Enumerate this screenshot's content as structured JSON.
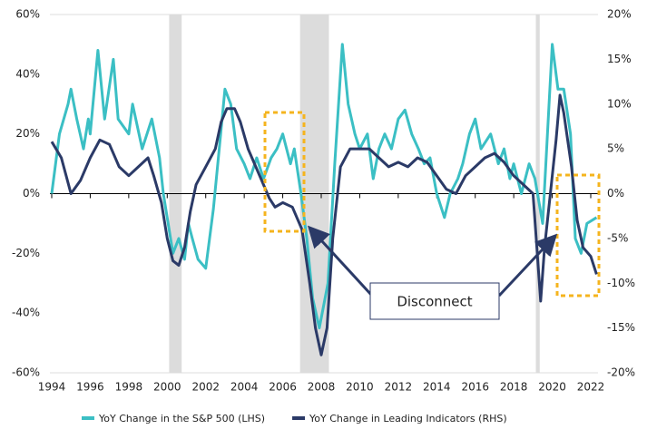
{
  "chart_data": {
    "type": "line",
    "xlim": [
      1994,
      2022
    ],
    "xticks": [
      1994,
      1996,
      1998,
      2000,
      2002,
      2004,
      2006,
      2008,
      2010,
      2012,
      2014,
      2016,
      2018,
      2020,
      2022
    ],
    "ylim": [
      -60,
      60
    ],
    "yticks": [
      {
        "value": -60,
        "label": "-60%"
      },
      {
        "value": -40,
        "label": "-40%"
      },
      {
        "value": -20,
        "label": "-20%"
      },
      {
        "value": 0,
        "label": "0%"
      },
      {
        "value": 20,
        "label": "20%"
      },
      {
        "value": 40,
        "label": "40%"
      },
      {
        "value": 60,
        "label": "60%"
      }
    ],
    "y2lim": [
      -20,
      20
    ],
    "y2ticks": [
      {
        "value": -20,
        "label": "-20%"
      },
      {
        "value": -15,
        "label": "-15%"
      },
      {
        "value": -10,
        "label": "-10%"
      },
      {
        "value": -5,
        "label": "-5%"
      },
      {
        "value": 0,
        "label": "0%"
      },
      {
        "value": 5,
        "label": "5%"
      },
      {
        "value": 10,
        "label": "10%"
      },
      {
        "value": 15,
        "label": "15%"
      },
      {
        "value": 20,
        "label": "20%"
      }
    ],
    "shaded_periods": [
      [
        2000.1,
        2000.75
      ],
      [
        2006.9,
        2008.4
      ],
      [
        2019.15,
        2019.35
      ]
    ],
    "annotation": "Disconnect",
    "legend": "bottom",
    "series": [
      {
        "name": "YoY Change in the S&P 500 (LHS)",
        "color": "#3bbfc4",
        "x": [
          1994,
          1994.4,
          1994.85,
          1995,
          1995.3,
          1995.65,
          1995.9,
          1996,
          1996.4,
          1996.75,
          1997.2,
          1997.45,
          1998,
          1998.2,
          1998.7,
          1999.2,
          1999.6,
          1999.8,
          2000.05,
          2000.3,
          2000.6,
          2000.9,
          2001.1,
          2001.3,
          2001.6,
          2002,
          2002.4,
          2002.7,
          2003,
          2003.3,
          2003.6,
          2004,
          2004.3,
          2004.65,
          2005,
          2005.4,
          2005.7,
          2006,
          2006.4,
          2006.6,
          2006.95,
          2007.25,
          2007.55,
          2007.9,
          2008.35,
          2008.7,
          2009.1,
          2009.4,
          2009.75,
          2010,
          2010.4,
          2010.7,
          2011,
          2011.3,
          2011.65,
          2012,
          2012.35,
          2012.7,
          2013.05,
          2013.35,
          2013.65,
          2014,
          2014.4,
          2014.7,
          2015.1,
          2015.35,
          2015.7,
          2016,
          2016.3,
          2016.8,
          2017.2,
          2017.5,
          2017.8,
          2018,
          2018.4,
          2018.8,
          2019.1,
          2019.5,
          2019.75,
          2020,
          2020.3,
          2020.6,
          2020.95,
          2021.2,
          2021.5,
          2021.8,
          2022.3
        ],
        "values": [
          0,
          20,
          30,
          35,
          25,
          15,
          25,
          20,
          48,
          25,
          45,
          25,
          20,
          30,
          15,
          25,
          12,
          0,
          -10,
          -20,
          -15,
          -22,
          -10,
          -15,
          -22,
          -25,
          -5,
          15,
          35,
          30,
          15,
          10,
          5,
          12,
          5,
          12,
          15,
          20,
          10,
          15,
          0,
          -15,
          -35,
          -45,
          -30,
          10,
          50,
          30,
          20,
          15,
          20,
          5,
          15,
          20,
          15,
          25,
          28,
          20,
          15,
          10,
          12,
          0,
          -8,
          0,
          5,
          10,
          20,
          25,
          15,
          20,
          10,
          15,
          5,
          10,
          0,
          10,
          5,
          -10,
          20,
          50,
          35,
          35,
          20,
          -15,
          -20,
          -10,
          -8
        ]
      },
      {
        "name": "YoY Change in Leading Indicators (RHS)",
        "color": "#2b3a67",
        "axis": "y2",
        "x": [
          1994,
          1994.5,
          1995,
          1995.5,
          1996,
          1996.5,
          1997,
          1997.5,
          1998,
          1998.5,
          1999,
          1999.3,
          1999.7,
          2000,
          2000.3,
          2000.6,
          2000.9,
          2001.2,
          2001.5,
          2002,
          2002.5,
          2002.8,
          2003.1,
          2003.5,
          2003.8,
          2004.2,
          2004.6,
          2005,
          2005.3,
          2005.6,
          2006,
          2006.5,
          2007,
          2007.4,
          2007.7,
          2008,
          2008.3,
          2008.6,
          2009,
          2009.5,
          2010,
          2010.5,
          2011,
          2011.5,
          2012,
          2012.5,
          2013,
          2013.5,
          2014,
          2014.5,
          2015,
          2015.5,
          2016,
          2016.5,
          2017,
          2017.5,
          2018,
          2018.5,
          2019,
          2019.2,
          2019.4,
          2019.6,
          2019.9,
          2020.2,
          2020.4,
          2020.6,
          2021,
          2021.3,
          2021.6,
          2022,
          2022.3
        ],
        "values": [
          5.8,
          4,
          0,
          1.5,
          4,
          6,
          5.5,
          3,
          2,
          3,
          4,
          2,
          -1,
          -5,
          -7.5,
          -8,
          -6,
          -2,
          1,
          3,
          5,
          8,
          9.5,
          9.5,
          8,
          5,
          3,
          1,
          -0.5,
          -1.5,
          -1,
          -1.5,
          -4,
          -10,
          -15,
          -18,
          -15,
          -5,
          3,
          5,
          5,
          5,
          4,
          3,
          3.5,
          3,
          4,
          3.5,
          2,
          0.5,
          0,
          2,
          3,
          4,
          4.5,
          3.5,
          2,
          1,
          0,
          -6,
          -12,
          -6,
          0,
          6,
          11,
          9,
          3,
          -3,
          -6,
          -7,
          -9
        ]
      }
    ]
  }
}
